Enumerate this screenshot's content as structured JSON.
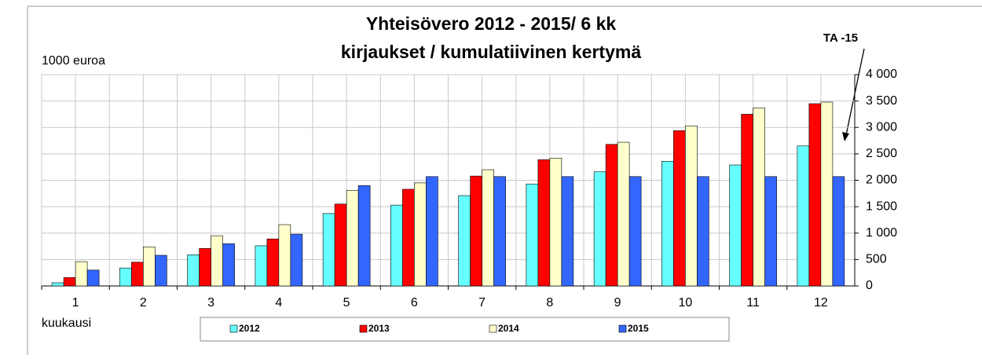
{
  "chart_data": {
    "type": "bar",
    "title": "Yhteisövero 2012 - 2015/ 6 kk",
    "subtitle": "kirjaukset / kumulatiivinen kertymä",
    "y_label": "1000 euroa",
    "x_label": "kuukausi",
    "annotation": "TA -15",
    "categories": [
      "1",
      "2",
      "3",
      "4",
      "5",
      "6",
      "7",
      "8",
      "9",
      "10",
      "11",
      "12"
    ],
    "series": [
      {
        "name": "2012",
        "color": "#66ffff",
        "values": [
          60,
          340,
          590,
          760,
          1370,
          1530,
          1710,
          1930,
          2160,
          2360,
          2290,
          2650
        ]
      },
      {
        "name": "2013",
        "color": "#ff0000",
        "values": [
          160,
          450,
          710,
          890,
          1550,
          1830,
          2080,
          2390,
          2680,
          2940,
          3250,
          3450
        ]
      },
      {
        "name": "2014",
        "color": "#ffffcc",
        "values": [
          460,
          740,
          950,
          1160,
          1810,
          1950,
          2200,
          2420,
          2720,
          3030,
          3370,
          3480
        ]
      },
      {
        "name": "2015",
        "color": "#3366ff",
        "values": [
          300,
          580,
          800,
          980,
          1900,
          2070,
          2070,
          2070,
          2070,
          2070,
          2070,
          2070
        ]
      }
    ],
    "ylim": [
      0,
      4000
    ],
    "yticks": [
      0,
      500,
      {
        "value": 1000,
        "label": "1 000"
      },
      {
        "value": 1500,
        "label": "1 500"
      },
      {
        "value": 2000,
        "label": "2 000"
      },
      {
        "value": 2500,
        "label": "2 500"
      },
      {
        "value": 3000,
        "label": "3 000"
      },
      {
        "value": 3500,
        "label": "3 500"
      },
      {
        "value": 4000,
        "label": "4 000"
      }
    ],
    "grid": true
  }
}
